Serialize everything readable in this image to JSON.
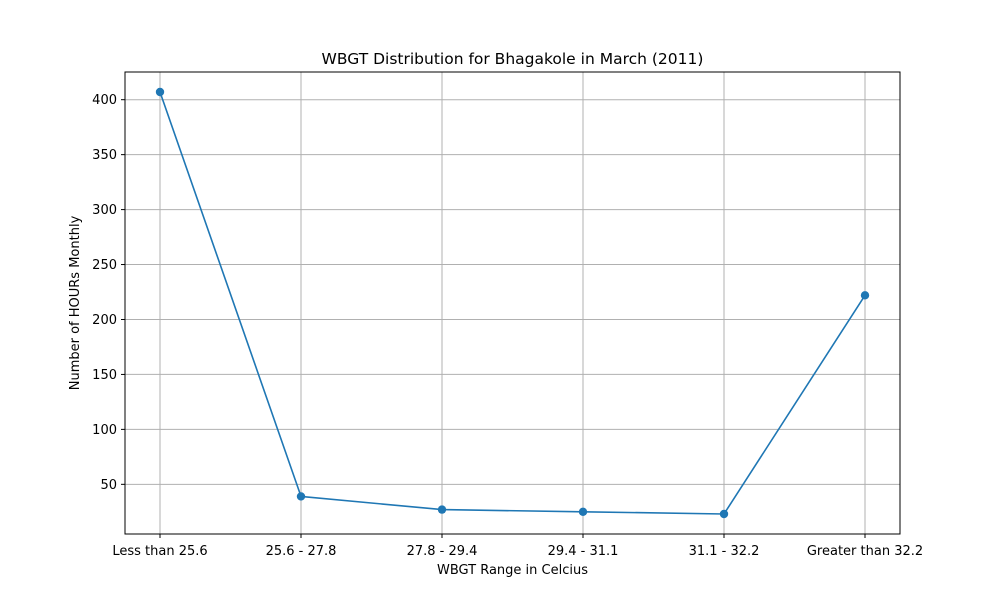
{
  "chart_data": {
    "type": "line",
    "title": "WBGT Distribution for Bhagakole in March (2011)",
    "xlabel": "WBGT Range in Celcius",
    "ylabel": "Number of HOURs Monthly",
    "categories": [
      "Less than 25.6",
      "25.6 - 27.8",
      "27.8 - 29.4",
      "29.4 - 31.1",
      "31.1 - 32.2",
      "Greater than 32.2"
    ],
    "series": [
      {
        "values": [
          407,
          39,
          27,
          25,
          23,
          222
        ]
      }
    ],
    "ylim": [
      4.8,
      425.2
    ],
    "yticks": [
      50,
      100,
      150,
      200,
      250,
      300,
      350,
      400
    ],
    "grid": true,
    "color": "#1f77b4"
  }
}
